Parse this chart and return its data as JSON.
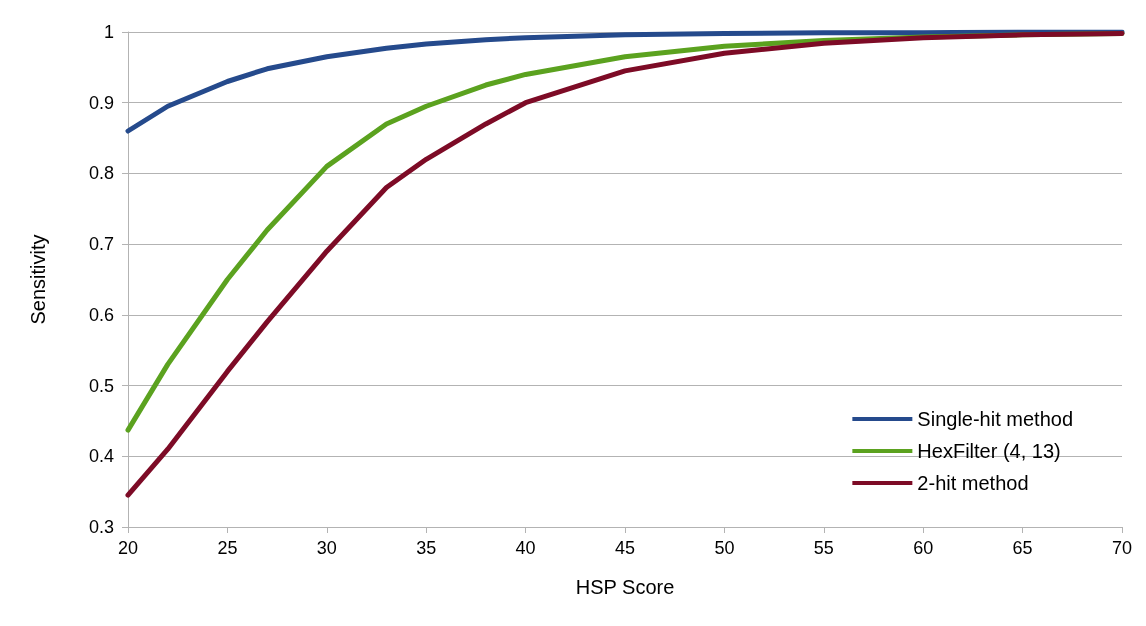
{
  "chart_data": {
    "type": "line",
    "xlabel": "HSP Score",
    "ylabel": "Sensitivity",
    "xlim": [
      20,
      70
    ],
    "xticks": [
      20,
      25,
      30,
      35,
      40,
      45,
      50,
      55,
      60,
      65,
      70
    ],
    "ylim": [
      0.3,
      1
    ],
    "yticks": [
      0.3,
      0.4,
      0.5,
      0.6,
      0.7,
      0.8,
      0.9,
      1
    ],
    "grid": "y",
    "legend": "bottom right",
    "marker": "none",
    "line_style": "solid",
    "x": [
      20,
      22,
      25,
      27,
      30,
      33,
      35,
      38,
      40,
      45,
      50,
      55,
      60,
      65,
      70
    ],
    "series": [
      {
        "name": "Single-hit method",
        "color": "#254a8c",
        "values": [
          0.86,
          0.895,
          0.93,
          0.948,
          0.965,
          0.977,
          0.983,
          0.989,
          0.992,
          0.996,
          0.998,
          0.999,
          0.999,
          1,
          1
        ]
      },
      {
        "name": "HexFilter (4, 13)",
        "color": "#5ba21f",
        "values": [
          0.437,
          0.53,
          0.65,
          0.72,
          0.81,
          0.87,
          0.895,
          0.925,
          0.94,
          0.965,
          0.98,
          0.988,
          0.993,
          0.996,
          0.998
        ]
      },
      {
        "name": "2-hit method",
        "color": "#7d0b26",
        "values": [
          0.345,
          0.41,
          0.52,
          0.59,
          0.69,
          0.78,
          0.82,
          0.87,
          0.9,
          0.945,
          0.97,
          0.984,
          0.992,
          0.996,
          0.998
        ]
      }
    ]
  }
}
